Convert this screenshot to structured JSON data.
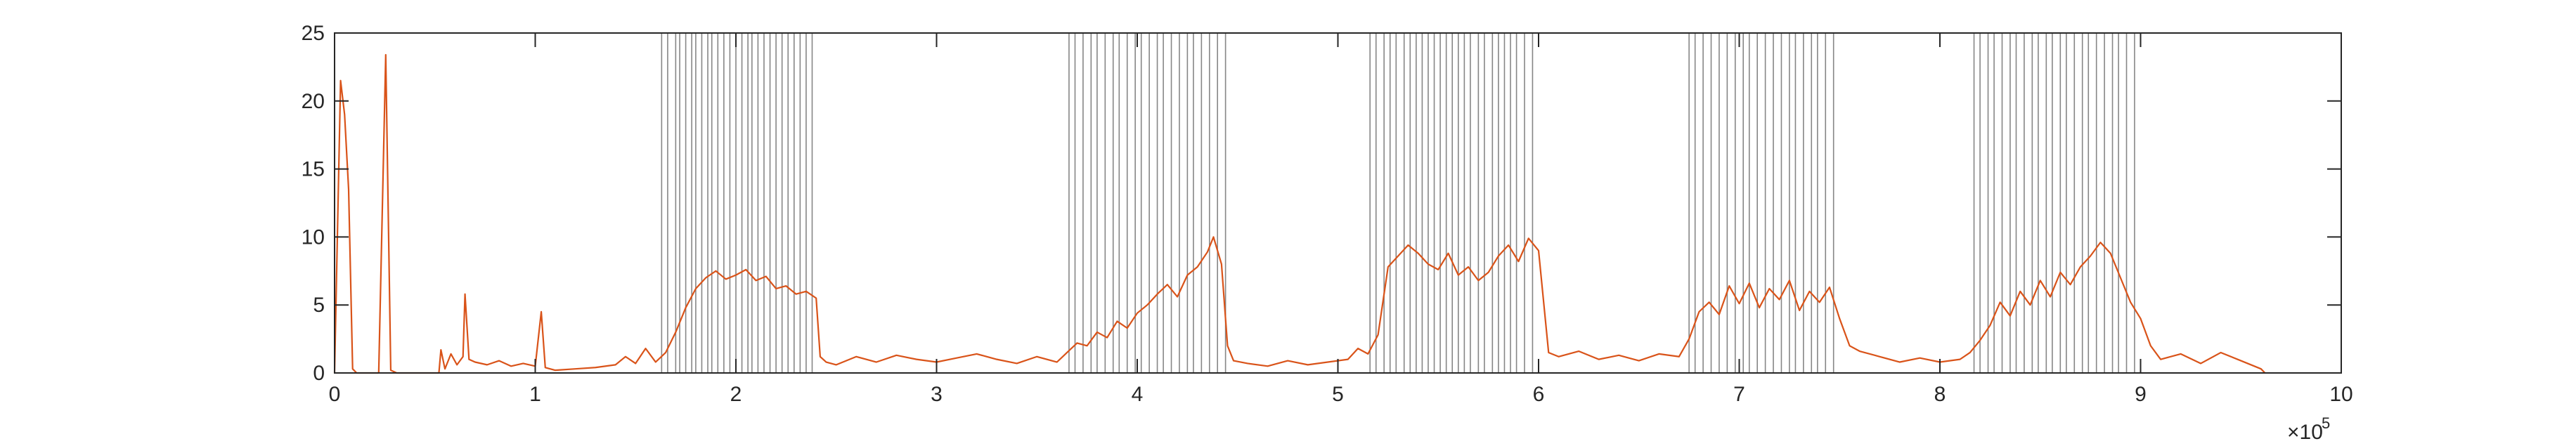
{
  "chart_data": {
    "type": "line",
    "title": "",
    "xlabel": "",
    "ylabel": "",
    "xlim": [
      0,
      10
    ],
    "ylim": [
      0,
      25
    ],
    "x_multiplier_label": "×10",
    "x_multiplier_exponent": "5",
    "x_ticks": [
      0,
      1,
      2,
      3,
      4,
      5,
      6,
      7,
      8,
      9,
      10
    ],
    "y_ticks": [
      0,
      5,
      10,
      15,
      20,
      25
    ],
    "grid": false,
    "colors": {
      "series": "#d95319",
      "markers": "#222222",
      "axes": "#262626"
    },
    "series": [
      {
        "values": [
          [
            0.0,
            0.0
          ],
          [
            0.03,
            21.5
          ],
          [
            0.05,
            19.0
          ],
          [
            0.07,
            13.5
          ],
          [
            0.09,
            0.3
          ],
          [
            0.11,
            0.0
          ],
          [
            0.22,
            0.0
          ],
          [
            0.255,
            23.4
          ],
          [
            0.28,
            0.2
          ],
          [
            0.31,
            0.0
          ],
          [
            0.52,
            0.0
          ],
          [
            0.53,
            1.7
          ],
          [
            0.55,
            0.3
          ],
          [
            0.58,
            1.4
          ],
          [
            0.61,
            0.6
          ],
          [
            0.64,
            1.2
          ],
          [
            0.65,
            5.8
          ],
          [
            0.67,
            1.0
          ],
          [
            0.7,
            0.8
          ],
          [
            0.76,
            0.6
          ],
          [
            0.82,
            0.9
          ],
          [
            0.88,
            0.5
          ],
          [
            0.94,
            0.7
          ],
          [
            1.0,
            0.5
          ],
          [
            1.03,
            4.5
          ],
          [
            1.05,
            0.4
          ],
          [
            1.1,
            0.2
          ],
          [
            1.2,
            0.3
          ],
          [
            1.3,
            0.4
          ],
          [
            1.4,
            0.6
          ],
          [
            1.45,
            1.2
          ],
          [
            1.5,
            0.7
          ],
          [
            1.55,
            1.8
          ],
          [
            1.6,
            0.8
          ],
          [
            1.65,
            1.5
          ],
          [
            1.7,
            3.0
          ],
          [
            1.75,
            4.8
          ],
          [
            1.8,
            6.2
          ],
          [
            1.85,
            7.0
          ],
          [
            1.9,
            7.5
          ],
          [
            1.95,
            6.9
          ],
          [
            2.0,
            7.2
          ],
          [
            2.05,
            7.6
          ],
          [
            2.1,
            6.8
          ],
          [
            2.15,
            7.1
          ],
          [
            2.2,
            6.2
          ],
          [
            2.25,
            6.4
          ],
          [
            2.3,
            5.8
          ],
          [
            2.35,
            6.0
          ],
          [
            2.4,
            5.5
          ],
          [
            2.42,
            1.2
          ],
          [
            2.45,
            0.8
          ],
          [
            2.5,
            0.6
          ],
          [
            2.6,
            1.2
          ],
          [
            2.7,
            0.8
          ],
          [
            2.8,
            1.3
          ],
          [
            2.9,
            1.0
          ],
          [
            3.0,
            0.8
          ],
          [
            3.1,
            1.1
          ],
          [
            3.2,
            1.4
          ],
          [
            3.3,
            1.0
          ],
          [
            3.4,
            0.7
          ],
          [
            3.5,
            1.2
          ],
          [
            3.6,
            0.8
          ],
          [
            3.65,
            1.5
          ],
          [
            3.7,
            2.2
          ],
          [
            3.75,
            2.0
          ],
          [
            3.8,
            3.0
          ],
          [
            3.85,
            2.6
          ],
          [
            3.9,
            3.8
          ],
          [
            3.95,
            3.3
          ],
          [
            4.0,
            4.4
          ],
          [
            4.05,
            5.0
          ],
          [
            4.1,
            5.8
          ],
          [
            4.15,
            6.5
          ],
          [
            4.2,
            5.6
          ],
          [
            4.25,
            7.2
          ],
          [
            4.3,
            7.8
          ],
          [
            4.35,
            8.9
          ],
          [
            4.38,
            10.0
          ],
          [
            4.42,
            8.0
          ],
          [
            4.45,
            2.0
          ],
          [
            4.48,
            0.9
          ],
          [
            4.55,
            0.7
          ],
          [
            4.65,
            0.5
          ],
          [
            4.75,
            0.9
          ],
          [
            4.85,
            0.6
          ],
          [
            4.95,
            0.8
          ],
          [
            5.05,
            1.0
          ],
          [
            5.1,
            1.8
          ],
          [
            5.15,
            1.4
          ],
          [
            5.2,
            2.8
          ],
          [
            5.25,
            7.8
          ],
          [
            5.3,
            8.6
          ],
          [
            5.35,
            9.4
          ],
          [
            5.4,
            8.8
          ],
          [
            5.45,
            8.0
          ],
          [
            5.5,
            7.6
          ],
          [
            5.55,
            8.8
          ],
          [
            5.6,
            7.2
          ],
          [
            5.65,
            7.8
          ],
          [
            5.7,
            6.8
          ],
          [
            5.75,
            7.4
          ],
          [
            5.8,
            8.6
          ],
          [
            5.85,
            9.4
          ],
          [
            5.9,
            8.2
          ],
          [
            5.95,
            9.9
          ],
          [
            6.0,
            9.0
          ],
          [
            6.02,
            6.0
          ],
          [
            6.05,
            1.5
          ],
          [
            6.1,
            1.2
          ],
          [
            6.2,
            1.6
          ],
          [
            6.3,
            1.0
          ],
          [
            6.4,
            1.3
          ],
          [
            6.5,
            0.9
          ],
          [
            6.6,
            1.4
          ],
          [
            6.7,
            1.2
          ],
          [
            6.75,
            2.5
          ],
          [
            6.8,
            4.5
          ],
          [
            6.85,
            5.2
          ],
          [
            6.9,
            4.3
          ],
          [
            6.95,
            6.4
          ],
          [
            7.0,
            5.1
          ],
          [
            7.05,
            6.6
          ],
          [
            7.1,
            4.8
          ],
          [
            7.15,
            6.2
          ],
          [
            7.2,
            5.4
          ],
          [
            7.25,
            6.8
          ],
          [
            7.3,
            4.6
          ],
          [
            7.35,
            6.0
          ],
          [
            7.4,
            5.2
          ],
          [
            7.45,
            6.3
          ],
          [
            7.5,
            4.0
          ],
          [
            7.55,
            2.0
          ],
          [
            7.6,
            1.6
          ],
          [
            7.7,
            1.2
          ],
          [
            7.8,
            0.8
          ],
          [
            7.9,
            1.1
          ],
          [
            8.0,
            0.8
          ],
          [
            8.1,
            1.0
          ],
          [
            8.15,
            1.5
          ],
          [
            8.2,
            2.4
          ],
          [
            8.25,
            3.5
          ],
          [
            8.3,
            5.2
          ],
          [
            8.35,
            4.2
          ],
          [
            8.4,
            6.0
          ],
          [
            8.45,
            5.0
          ],
          [
            8.5,
            6.8
          ],
          [
            8.55,
            5.6
          ],
          [
            8.6,
            7.4
          ],
          [
            8.65,
            6.5
          ],
          [
            8.7,
            7.8
          ],
          [
            8.75,
            8.6
          ],
          [
            8.8,
            9.6
          ],
          [
            8.85,
            8.8
          ],
          [
            8.9,
            7.0
          ],
          [
            8.95,
            5.2
          ],
          [
            9.0,
            4.0
          ],
          [
            9.05,
            2.0
          ],
          [
            9.1,
            1.0
          ],
          [
            9.2,
            1.4
          ],
          [
            9.3,
            0.7
          ],
          [
            9.4,
            1.5
          ],
          [
            9.5,
            0.9
          ],
          [
            9.6,
            0.3
          ],
          [
            9.62,
            0.0
          ]
        ]
      }
    ],
    "vertical_markers": [
      1.63,
      1.66,
      1.7,
      1.72,
      1.75,
      1.78,
      1.8,
      1.83,
      1.86,
      1.88,
      1.91,
      1.94,
      1.97,
      2.0,
      2.03,
      2.06,
      2.08,
      2.11,
      2.14,
      2.17,
      2.2,
      2.23,
      2.26,
      2.29,
      2.32,
      2.35,
      2.38,
      3.66,
      3.69,
      3.73,
      3.77,
      3.8,
      3.84,
      3.88,
      3.91,
      3.95,
      3.99,
      4.02,
      4.06,
      4.1,
      4.13,
      4.17,
      4.21,
      4.25,
      4.28,
      4.32,
      4.36,
      4.4,
      4.44,
      5.16,
      5.19,
      5.23,
      5.26,
      5.29,
      5.33,
      5.36,
      5.39,
      5.42,
      5.45,
      5.48,
      5.51,
      5.54,
      5.57,
      5.6,
      5.63,
      5.66,
      5.7,
      5.73,
      5.77,
      5.8,
      5.83,
      5.86,
      5.89,
      5.93,
      5.97,
      6.75,
      6.78,
      6.82,
      6.86,
      6.9,
      6.94,
      6.98,
      7.02,
      7.05,
      7.09,
      7.13,
      7.17,
      7.21,
      7.25,
      7.28,
      7.32,
      7.36,
      7.39,
      7.43,
      7.47,
      8.17,
      8.2,
      8.24,
      8.27,
      8.31,
      8.35,
      8.38,
      8.42,
      8.46,
      8.49,
      8.53,
      8.56,
      8.6,
      8.63,
      8.67,
      8.71,
      8.74,
      8.78,
      8.82,
      8.86,
      8.89,
      8.93,
      8.97
    ]
  }
}
